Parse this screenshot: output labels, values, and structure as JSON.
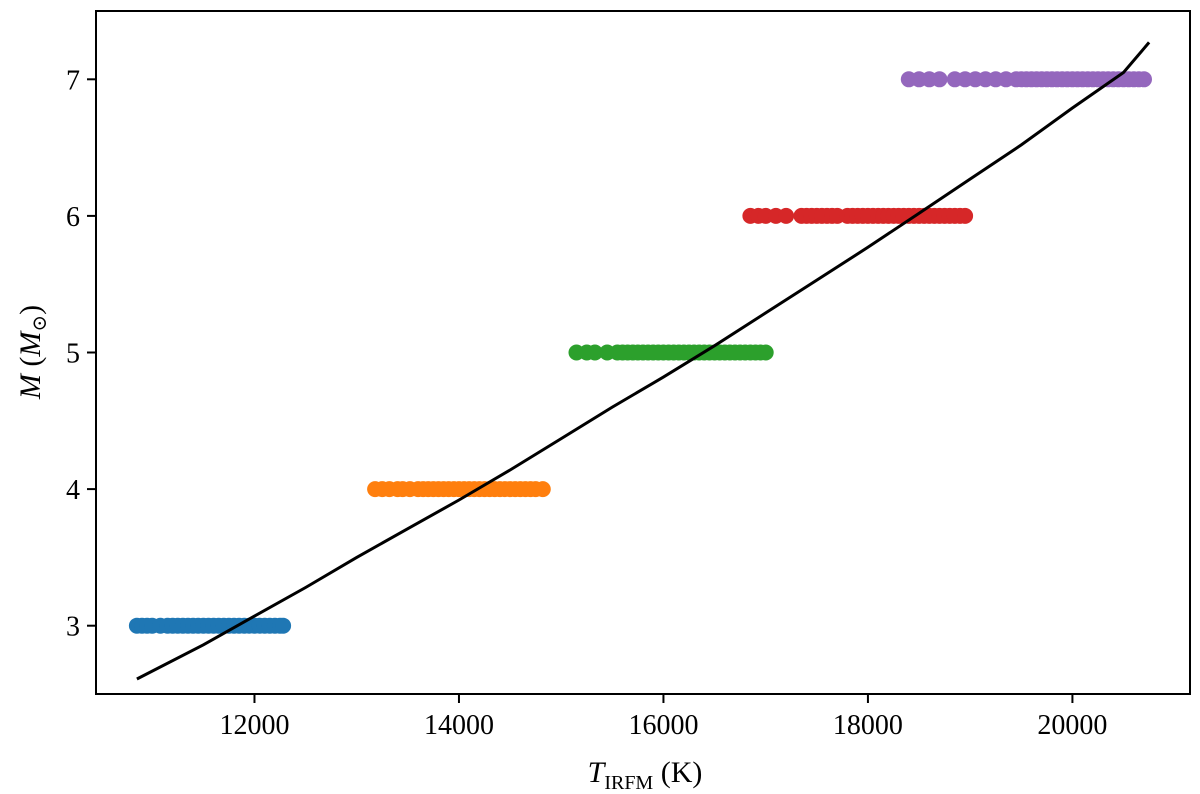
{
  "chart_data": {
    "type": "scatter",
    "xlabel": {
      "var": "T",
      "sub": "IRFM",
      "unit": " (K)"
    },
    "ylabel": {
      "var": "M",
      "open": " (",
      "unit_var": "M",
      "unit_sub": "⊙",
      "close": ")"
    },
    "xlim": [
      10450,
      21150
    ],
    "ylim": [
      2.5,
      7.5
    ],
    "xticks": [
      12000,
      14000,
      16000,
      18000,
      20000
    ],
    "yticks": [
      3,
      4,
      5,
      6,
      7
    ],
    "grid": false,
    "series": [
      {
        "color": "#1f77b4",
        "y": 3,
        "x": [
          10850,
          10900,
          10950,
          11000,
          11080,
          11150,
          11200,
          11250,
          11300,
          11350,
          11400,
          11450,
          11500,
          11550,
          11600,
          11650,
          11700,
          11750,
          11800,
          11850,
          11900,
          11950,
          12000,
          12050,
          12100,
          12150,
          12200,
          12250,
          12280
        ]
      },
      {
        "color": "#ff7f0e",
        "y": 4,
        "x": [
          13180,
          13250,
          13320,
          13400,
          13450,
          13520,
          13600,
          13650,
          13700,
          13750,
          13800,
          13850,
          13900,
          13950,
          14000,
          14050,
          14100,
          14150,
          14200,
          14250,
          14300,
          14350,
          14400,
          14450,
          14500,
          14550,
          14600,
          14650,
          14700,
          14750,
          14820
        ]
      },
      {
        "color": "#2ca02c",
        "y": 5,
        "x": [
          15150,
          15250,
          15330,
          15450,
          15550,
          15600,
          15650,
          15700,
          15750,
          15800,
          15850,
          15900,
          15950,
          16000,
          16050,
          16100,
          16150,
          16200,
          16250,
          16300,
          16350,
          16400,
          16450,
          16500,
          16550,
          16600,
          16650,
          16700,
          16750,
          16800,
          16850,
          16900,
          16950,
          17000
        ]
      },
      {
        "color": "#d62728",
        "y": 6,
        "x": [
          16850,
          16930,
          17000,
          17100,
          17200,
          17350,
          17400,
          17450,
          17500,
          17550,
          17600,
          17650,
          17700,
          17800,
          17850,
          17900,
          17950,
          18000,
          18050,
          18100,
          18150,
          18200,
          18250,
          18300,
          18350,
          18400,
          18450,
          18500,
          18550,
          18600,
          18650,
          18700,
          18750,
          18800,
          18850,
          18900,
          18950
        ]
      },
      {
        "color": "#9467bd",
        "y": 7,
        "x": [
          18400,
          18500,
          18600,
          18700,
          18850,
          18950,
          19050,
          19150,
          19250,
          19350,
          19450,
          19500,
          19550,
          19600,
          19650,
          19700,
          19750,
          19800,
          19850,
          19900,
          19950,
          20000,
          20050,
          20100,
          20150,
          20200,
          20250,
          20300,
          20350,
          20400,
          20450,
          20500,
          20550,
          20600,
          20650,
          20700
        ]
      }
    ],
    "fit_line": {
      "color": "#000000",
      "x": [
        10850,
        11500,
        12000,
        12500,
        13000,
        13500,
        14000,
        14500,
        15000,
        15500,
        16000,
        16500,
        17000,
        17500,
        18000,
        18500,
        19000,
        19500,
        20000,
        20500,
        20750
      ],
      "y": [
        2.61,
        2.86,
        3.07,
        3.28,
        3.5,
        3.71,
        3.92,
        4.14,
        4.37,
        4.6,
        4.82,
        5.05,
        5.29,
        5.53,
        5.77,
        6.02,
        6.27,
        6.52,
        6.79,
        7.05,
        7.27
      ]
    }
  }
}
